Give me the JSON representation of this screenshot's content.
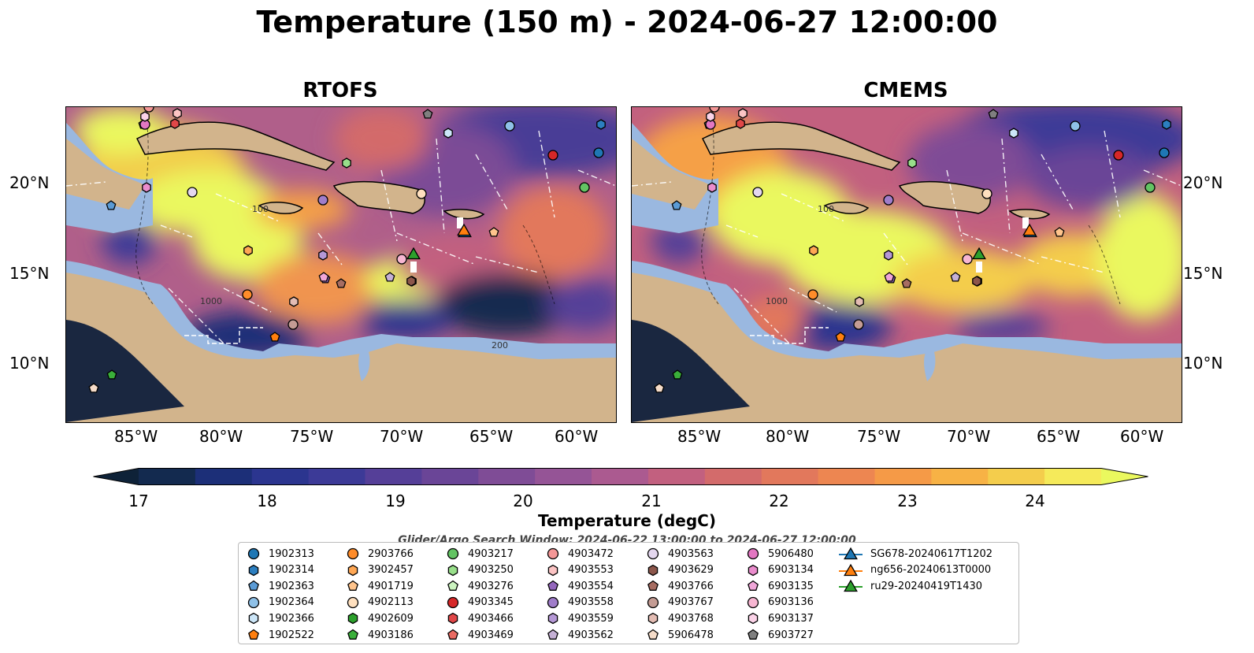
{
  "title": "Temperature (150 m) - 2024-06-27 12:00:00",
  "panels": [
    {
      "title": "RTOFS"
    },
    {
      "title": "CMEMS"
    }
  ],
  "lat_labels": [
    "20°N",
    "15°N",
    "10°N"
  ],
  "lon_labels": [
    "85°W",
    "80°W",
    "75°W",
    "70°W",
    "65°W",
    "60°W"
  ],
  "colorbar": {
    "ticks": [
      "17",
      "18",
      "19",
      "20",
      "21",
      "22",
      "23",
      "24"
    ],
    "label": "Temperature (degC)",
    "colors": [
      "#0e2238",
      "#132a4f",
      "#1c2f78",
      "#2b358f",
      "#3c3a97",
      "#553f98",
      "#6a4597",
      "#7f4c96",
      "#955496",
      "#ab5a90",
      "#c2607f",
      "#d36b6b",
      "#e2785c",
      "#ed8651",
      "#f59a47",
      "#f7b245",
      "#f4cd4c",
      "#f5ea5a",
      "#eaf85e"
    ]
  },
  "search_window": "Glider/Argo Search Window: 2024-06-22 13:00:00 to 2024-06-27 12:00:00",
  "legend": [
    {
      "label": "1902313",
      "shape": "circle",
      "color": "#1f77b4"
    },
    {
      "label": "1902314",
      "shape": "hexagon",
      "color": "#2c7fc0"
    },
    {
      "label": "1902363",
      "shape": "pentagon",
      "color": "#5b9bd5"
    },
    {
      "label": "1902364",
      "shape": "circle",
      "color": "#8fc1e8"
    },
    {
      "label": "1902366",
      "shape": "hexagon",
      "color": "#cce6f8"
    },
    {
      "label": "1902522",
      "shape": "pentagon",
      "color": "#ff7f0e"
    },
    {
      "label": "2903766",
      "shape": "circle",
      "color": "#ff8c2a"
    },
    {
      "label": "3902457",
      "shape": "hexagon",
      "color": "#ffa754"
    },
    {
      "label": "4901719",
      "shape": "pentagon",
      "color": "#ffc48c"
    },
    {
      "label": "4902113",
      "shape": "circle",
      "color": "#ffe0bf"
    },
    {
      "label": "4902609",
      "shape": "hexagon",
      "color": "#2ca02c"
    },
    {
      "label": "4903186",
      "shape": "pentagon",
      "color": "#3aaf3a"
    },
    {
      "label": "4903217",
      "shape": "circle",
      "color": "#63c463"
    },
    {
      "label": "4903250",
      "shape": "hexagon",
      "color": "#98df8a"
    },
    {
      "label": "4903276",
      "shape": "pentagon",
      "color": "#ccf4c0"
    },
    {
      "label": "4903345",
      "shape": "circle",
      "color": "#d62728"
    },
    {
      "label": "4903466",
      "shape": "hexagon",
      "color": "#e04748"
    },
    {
      "label": "4903469",
      "shape": "pentagon",
      "color": "#ea6b63"
    },
    {
      "label": "4903472",
      "shape": "circle",
      "color": "#f49797"
    },
    {
      "label": "4903553",
      "shape": "hexagon",
      "color": "#fcc4c4"
    },
    {
      "label": "4903554",
      "shape": "pentagon",
      "color": "#9467bd"
    },
    {
      "label": "4903558",
      "shape": "circle",
      "color": "#a07dca"
    },
    {
      "label": "4903559",
      "shape": "hexagon",
      "color": "#b598d6"
    },
    {
      "label": "4903562",
      "shape": "pentagon",
      "color": "#c5b0d5"
    },
    {
      "label": "4903563",
      "shape": "circle",
      "color": "#e4d7ef"
    },
    {
      "label": "4903629",
      "shape": "hexagon",
      "color": "#8c564b"
    },
    {
      "label": "4903766",
      "shape": "pentagon",
      "color": "#a76d62"
    },
    {
      "label": "4903767",
      "shape": "circle",
      "color": "#c49c94"
    },
    {
      "label": "4903768",
      "shape": "hexagon",
      "color": "#e3bcb3"
    },
    {
      "label": "5906478",
      "shape": "pentagon",
      "color": "#f5dcc9"
    },
    {
      "label": "5906480",
      "shape": "circle",
      "color": "#e377c2"
    },
    {
      "label": "6903134",
      "shape": "hexagon",
      "color": "#ea8ccd"
    },
    {
      "label": "6903135",
      "shape": "pentagon",
      "color": "#f0a6d8"
    },
    {
      "label": "6903136",
      "shape": "circle",
      "color": "#f7b6d2"
    },
    {
      "label": "6903137",
      "shape": "hexagon",
      "color": "#fbd3e8"
    },
    {
      "label": "6903727",
      "shape": "pentagon",
      "color": "#7f7f7f"
    },
    {
      "label": "SG678-20240617T1202",
      "shape": "triangle",
      "color": "#1f77b4"
    },
    {
      "label": "ng656-20240613T0000",
      "shape": "triangle",
      "color": "#ff7f0e"
    },
    {
      "label": "ru29-20240419T1430",
      "shape": "triangle",
      "color": "#2ca02c"
    }
  ],
  "map_colors": {
    "land": "#d2b48c",
    "shallow": "#9ab8e0",
    "deep": "#1a2740"
  },
  "contour_labels": [
    "100",
    "1000",
    "200"
  ]
}
